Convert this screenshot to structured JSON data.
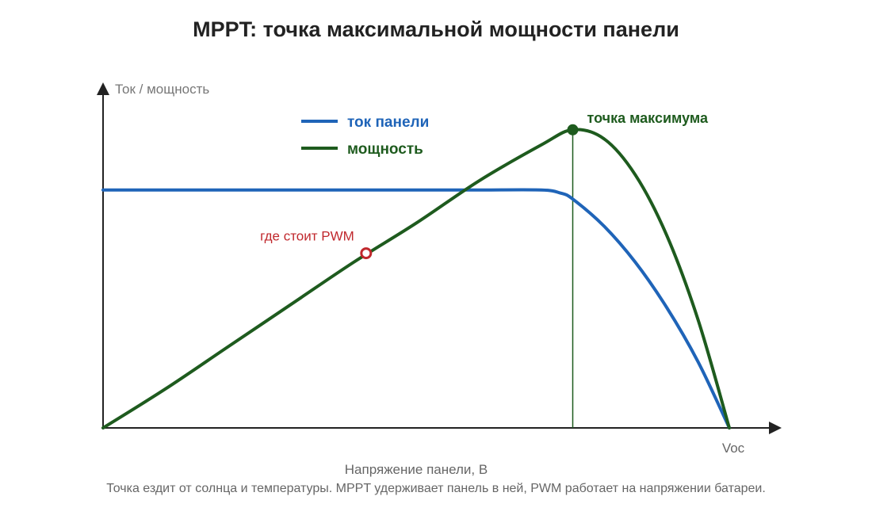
{
  "title": "MPPT: точка максимальной мощности панели",
  "caption": "Точка ездит от солнца и температуры. MPPT удерживает панель в ней, PWM работает на напряжении батареи.",
  "chart_data": {
    "type": "line",
    "xlabel": "Напряжение панели, В",
    "ylabel": "Ток / мощность",
    "x_tick_label": "Voc",
    "grid": false,
    "legend_position": "top-left",
    "xlim": [
      0,
      1
    ],
    "ylim": [
      0,
      1
    ],
    "series": [
      {
        "name": "ток панели",
        "color": "#1f64b8",
        "x": [
          0,
          0.1,
          0.2,
          0.3,
          0.4,
          0.5,
          0.6,
          0.7,
          0.73,
          0.75,
          0.8,
          0.85,
          0.9,
          0.95,
          1.0
        ],
        "values": [
          0.79,
          0.79,
          0.79,
          0.79,
          0.79,
          0.79,
          0.79,
          0.79,
          0.78,
          0.76,
          0.67,
          0.55,
          0.4,
          0.22,
          0.0
        ]
      },
      {
        "name": "мощность",
        "color": "#1e5b1e",
        "x": [
          0,
          0.1,
          0.2,
          0.3,
          0.4,
          0.5,
          0.6,
          0.7,
          0.75,
          0.8,
          0.85,
          0.9,
          0.95,
          1.0
        ],
        "values": [
          0.0,
          0.13,
          0.27,
          0.41,
          0.55,
          0.68,
          0.82,
          0.94,
          0.99,
          0.96,
          0.84,
          0.64,
          0.36,
          0.0
        ]
      }
    ],
    "annotations": [
      {
        "label": "точка максимума",
        "x": 0.75,
        "y": 0.99,
        "color": "#1e5b1e",
        "style": "filled",
        "vertical_line": true
      },
      {
        "label": "где стоит PWM",
        "x": 0.42,
        "y": 0.58,
        "color": "#c0282d",
        "style": "hollow"
      }
    ]
  }
}
